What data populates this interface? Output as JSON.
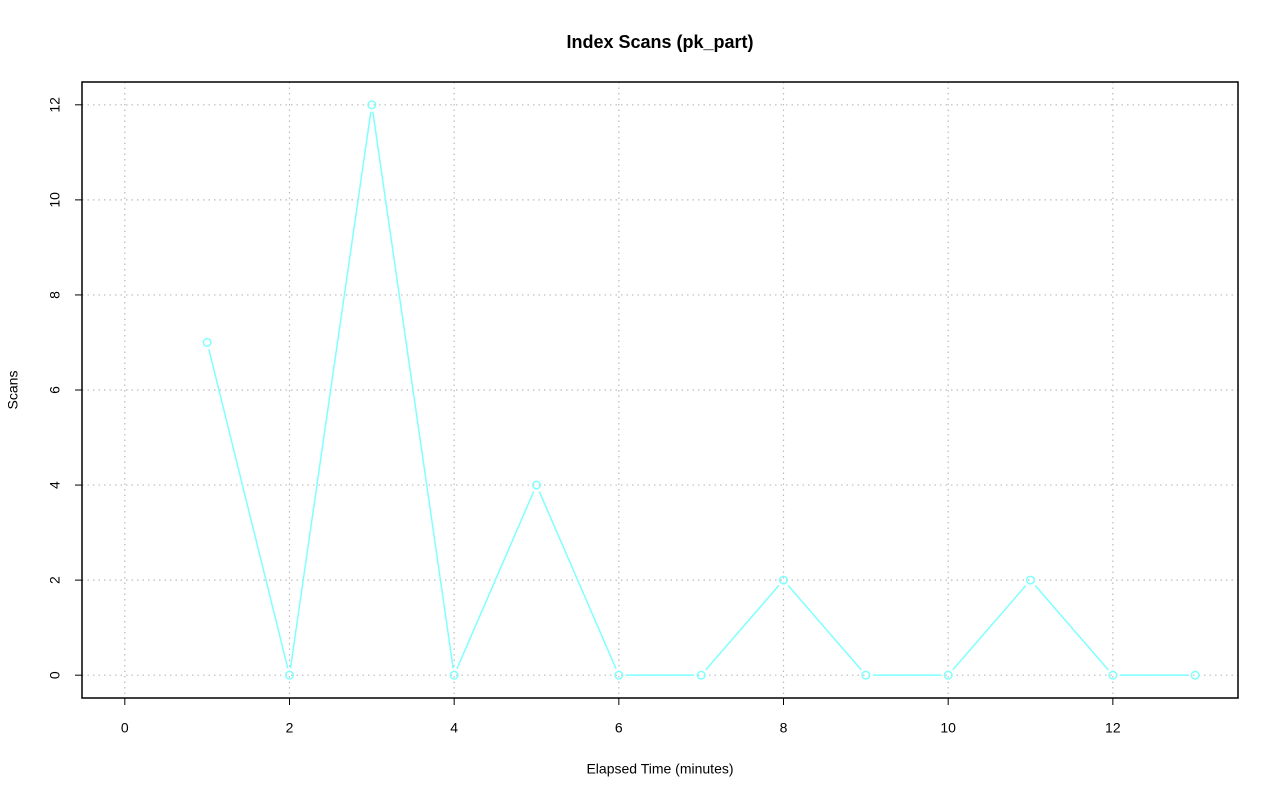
{
  "chart_data": {
    "type": "line",
    "title": "Index Scans (pk_part)",
    "x_label": "Elapsed Time (minutes)",
    "y_label": "Scans",
    "x": [
      1,
      2,
      3,
      4,
      5,
      6,
      7,
      8,
      9,
      10,
      11,
      12,
      13
    ],
    "values": [
      7,
      0,
      12,
      0,
      4,
      0,
      0,
      2,
      0,
      0,
      2,
      0,
      0
    ],
    "color": "#80ffff",
    "xlim": [
      -0.52,
      13.52
    ],
    "xticks": [
      0,
      2,
      4,
      6,
      8,
      10,
      12
    ],
    "ylim": [
      -0.48,
      12.48
    ],
    "yticks": [
      0,
      2,
      4,
      6,
      8,
      10,
      12
    ],
    "grid": true
  }
}
